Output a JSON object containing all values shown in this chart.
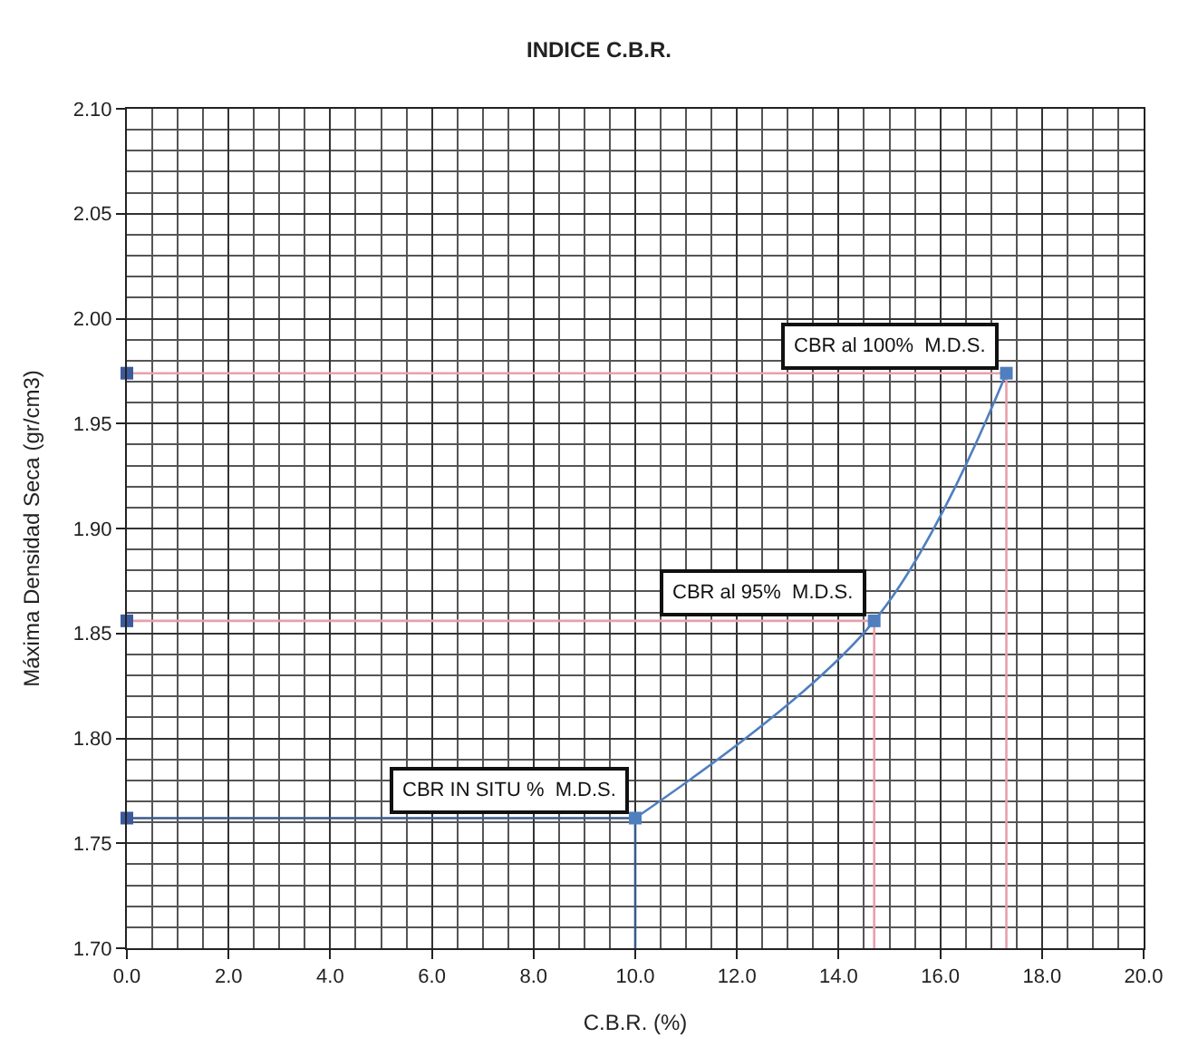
{
  "chart_data": {
    "type": "line",
    "title": "INDICE C.B.R.",
    "xlabel": "C.B.R. (%)",
    "ylabel": "Máxima Densidad Seca (gr/cm3)",
    "xlim": [
      0,
      20
    ],
    "xticks": [
      {
        "value": 0,
        "label": "0.0"
      },
      {
        "value": 2,
        "label": "2.0"
      },
      {
        "value": 4,
        "label": "4.0"
      },
      {
        "value": 6,
        "label": "6.0"
      },
      {
        "value": 8,
        "label": "8.0"
      },
      {
        "value": 10,
        "label": "10.0"
      },
      {
        "value": 12,
        "label": "12.0"
      },
      {
        "value": 14,
        "label": "14.0"
      },
      {
        "value": 16,
        "label": "16.0"
      },
      {
        "value": 18,
        "label": "18.0"
      },
      {
        "value": 20,
        "label": "20.0"
      }
    ],
    "ylim": [
      1.7,
      2.1
    ],
    "yticks": [
      {
        "value": 1.7,
        "label": "1.70"
      },
      {
        "value": 1.75,
        "label": "1.75"
      },
      {
        "value": 1.8,
        "label": "1.80"
      },
      {
        "value": 1.85,
        "label": "1.85"
      },
      {
        "value": 1.9,
        "label": "1.90"
      },
      {
        "value": 1.95,
        "label": "1.95"
      },
      {
        "value": 2.0,
        "label": "2.00"
      },
      {
        "value": 2.05,
        "label": "2.05"
      },
      {
        "value": 2.1,
        "label": "2.10"
      }
    ],
    "grid": true,
    "series": [
      {
        "color": "#e8a0ab",
        "marker": "none",
        "x": [
          0,
          17.3,
          17.3
        ],
        "values": [
          1.974,
          1.974,
          1.7
        ]
      },
      {
        "color": "#e8a0ab",
        "marker": "none",
        "x": [
          0,
          14.7,
          14.7
        ],
        "values": [
          1.856,
          1.856,
          1.7
        ]
      },
      {
        "color": "#3c5a8c",
        "marker": "none",
        "x": [
          0,
          10.0,
          10.0
        ],
        "values": [
          1.762,
          1.762,
          1.7
        ]
      },
      {
        "color": "#4f7fbf",
        "marker": "square",
        "x": [
          10.0,
          14.7,
          17.3
        ],
        "values": [
          1.762,
          1.856,
          1.974
        ]
      },
      {
        "type": "scatter",
        "color": "#3c5a9c",
        "marker": "square",
        "x": [
          0,
          0,
          0
        ],
        "values": [
          1.762,
          1.856,
          1.974
        ]
      }
    ],
    "annotations": [
      {
        "text": "CBR al 100%  M.D.S.",
        "x": 17.3,
        "y": 1.974
      },
      {
        "text": "CBR al 95%  M.D.S.",
        "x": 14.7,
        "y": 1.856
      },
      {
        "text": "CBR IN SITU %  M.D.S.",
        "x": 10.0,
        "y": 1.762
      }
    ]
  }
}
